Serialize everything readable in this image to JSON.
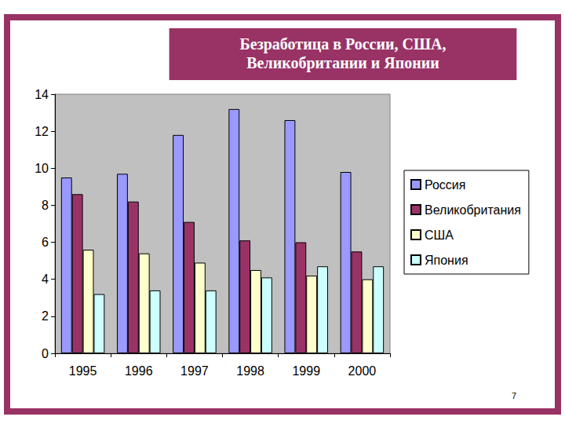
{
  "chart_data": {
    "type": "bar",
    "title": "Безработица в России, США,\nВеликобритании и Японии",
    "categories": [
      "1995",
      "1996",
      "1997",
      "1998",
      "1999",
      "2000"
    ],
    "series": [
      {
        "name": "Россия",
        "color": "#9999ff",
        "values": [
          9.5,
          9.7,
          11.8,
          13.2,
          12.6,
          9.8
        ]
      },
      {
        "name": "Великобритания",
        "color": "#993366",
        "values": [
          8.6,
          8.2,
          7.1,
          6.1,
          6.0,
          5.5
        ]
      },
      {
        "name": "США",
        "color": "#ffffcc",
        "values": [
          5.6,
          5.4,
          4.9,
          4.5,
          4.2,
          4.0
        ]
      },
      {
        "name": "Япония",
        "color": "#ccffff",
        "values": [
          3.2,
          3.4,
          3.4,
          4.1,
          4.7,
          4.7
        ]
      }
    ],
    "ylim": [
      0,
      14
    ],
    "yticks": [
      0,
      2,
      4,
      6,
      8,
      10,
      12,
      14
    ],
    "grid": false,
    "legend": "right",
    "annotations": [
      "7"
    ]
  }
}
